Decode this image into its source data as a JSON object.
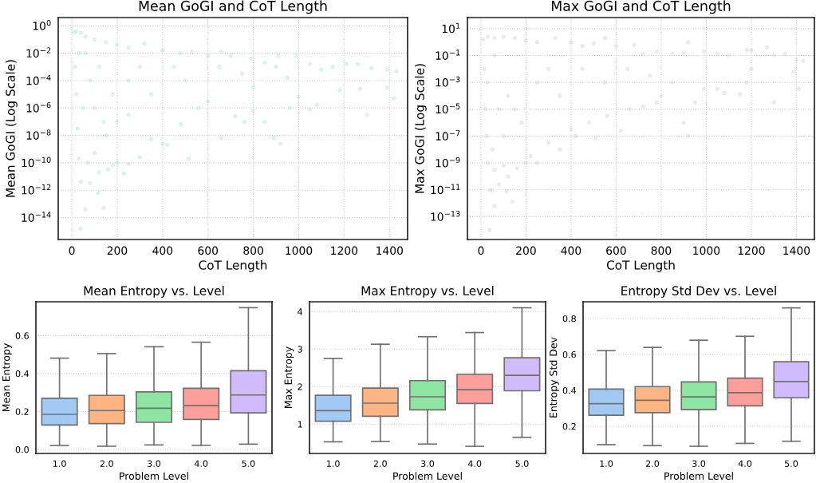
{
  "chart_data": [
    {
      "type": "scatter",
      "title": "Mean GoGI and CoT Length",
      "xlabel": "CoT Length",
      "ylabel": "Mean GoGI (Log Scale)",
      "log": "y",
      "grid": true,
      "marker": "circle",
      "xlim": [
        -60,
        1480
      ],
      "xticks": [
        0,
        200,
        400,
        600,
        800,
        1000,
        1200,
        1400
      ],
      "ylim": [
        2.5e-16,
        4
      ],
      "yticks": [
        {
          "value": 1,
          "label": "10$^{0}$"
        },
        {
          "value": 0.01,
          "label": "10$^{−2}$"
        },
        {
          "value": 0.0001,
          "label": "10$^{−4}$"
        },
        {
          "value": 1e-06,
          "label": "10$^{−6}$"
        },
        {
          "value": 1e-08,
          "label": "10$^{−8}$"
        },
        {
          "value": 1e-10,
          "label": "10$^{−10}$"
        },
        {
          "value": 1e-12,
          "label": "10$^{−12}$"
        },
        {
          "value": 1e-14,
          "label": "10$^{−14}$"
        }
      ],
      "series": [
        {
          "color": "#8dd3c7",
          "x": [
            10,
            20,
            40,
            60,
            100,
            150,
            200,
            250,
            320,
            400,
            480,
            530,
            600,
            660,
            700,
            790,
            850,
            910,
            990,
            1050,
            1100,
            1150,
            1210,
            1260,
            1320,
            1390,
            1430,
            1420,
            1390,
            1300,
            1270,
            1180,
            1080,
            1050,
            1000,
            960,
            920,
            890,
            850,
            800,
            760,
            720,
            660,
            600,
            560,
            515,
            480,
            420,
            400,
            350,
            300,
            250,
            230,
            200,
            180,
            160,
            150,
            140,
            120,
            115,
            100,
            80,
            70,
            60,
            40,
            38,
            30,
            25,
            20,
            15,
            50,
            80,
            120,
            180,
            250,
            300,
            350,
            450,
            500,
            650,
            750,
            800,
            900,
            950,
            30,
            60,
            100,
            140,
            200,
            250
          ],
          "values": [
            0.32,
            0.4,
            0.32,
            0.16,
            0.1,
            0.063,
            0.04,
            0.025,
            0.05,
            0.016,
            0.01,
            0.013,
            0.0063,
            0.013,
            0.0063,
            0.004,
            0.002,
            0.0063,
            0.0063,
            0.0016,
            0.00063,
            0.001,
            0.0016,
            0.0016,
            0.00079,
            0.00063,
            0.0005,
            5e-06,
            3.2e-05,
            3.2e-07,
            2.5e-05,
            2e-05,
            1.6e-06,
            7.9e-07,
            6.3e-06,
            1e-06,
            2.5e-09,
            6.3e-09,
            1e-07,
            6.3e-07,
            1e-07,
            2.5e-07,
            6.3e-09,
            3.2e-06,
            1e-06,
            2e-10,
            6.3e-08,
            2e-09,
            2.5e-09,
            5e-09,
            2.5e-10,
            7.9e-11,
            1.6e-11,
            1e-10,
            6.3e-11,
            3.2e-11,
            1e-08,
            5e-14,
            2e-11,
            6.3e-13,
            5e-10,
            3.2e-12,
            1e-10,
            4e-14,
            4e-12,
            1.6e-15,
            2e-10,
            3.2e-08,
            1e-05,
            0.001,
            1e-06,
            0.0001,
            0.001,
            1e-05,
            0.0001,
            0.001,
            1e-05,
            0.001,
            0.0001,
            0.001,
            0.00032,
            3.2e-05,
            0.001,
            0.00016,
            0.01,
            0.01,
            1e-06,
            1e-07,
            1e-07,
            3.2e-07
          ]
        }
      ]
    },
    {
      "type": "scatter",
      "title": "Max GoGI and CoT Length",
      "xlabel": "CoT Length",
      "ylabel": "Max GoGI (Log Scale)",
      "log": "y",
      "grid": true,
      "marker": "circle",
      "xlim": [
        -60,
        1480
      ],
      "xticks": [
        0,
        200,
        400,
        600,
        800,
        1000,
        1200,
        1400
      ],
      "ylim": [
        2e-15,
        67
      ],
      "yticks": [
        {
          "value": 10,
          "label": "10$^{1}$"
        },
        {
          "value": 0.1,
          "label": "10$^{−1}$"
        },
        {
          "value": 0.001,
          "label": "10$^{−3}$"
        },
        {
          "value": 1e-05,
          "label": "10$^{−5}$"
        },
        {
          "value": 1e-07,
          "label": "10$^{−7}$"
        },
        {
          "value": 1e-09,
          "label": "10$^{−9}$"
        },
        {
          "value": 1e-11,
          "label": "10$^{−11}$"
        },
        {
          "value": 1e-13,
          "label": "10$^{−13}$"
        }
      ],
      "series": [
        {
          "color": "#bebada",
          "x": [
            10,
            30,
            60,
            100,
            150,
            200,
            250,
            330,
            400,
            450,
            500,
            550,
            600,
            680,
            720,
            780,
            850,
            900,
            920,
            990,
            1050,
            1100,
            1180,
            1200,
            1270,
            1300,
            1350,
            1400,
            1430,
            1390,
            1410,
            1300,
            1200,
            1180,
            1150,
            1080,
            1050,
            990,
            950,
            920,
            900,
            850,
            800,
            780,
            720,
            660,
            620,
            560,
            510,
            480,
            420,
            400,
            350,
            300,
            250,
            220,
            200,
            160,
            120,
            115,
            100,
            80,
            60,
            60,
            50,
            40,
            38,
            30,
            25,
            20,
            15,
            140,
            50,
            80,
            120,
            180,
            250,
            300,
            350,
            450,
            550,
            650,
            750,
            30,
            60,
            100,
            150
          ],
          "values": [
            1.6,
            2.5,
            2,
            2.5,
            2,
            1.3,
            1,
            2,
            1,
            0.5,
            0.79,
            2,
            0.5,
            0.63,
            0.13,
            0.2,
            0.13,
            0.16,
            1,
            0.2,
            0.13,
            0.1,
            0.25,
            0.25,
            0.4,
            0.1,
            0.13,
            0.05,
            0.04,
            0.0063,
            0.00032,
            3.2e-05,
            0.01,
            0.001,
            0.00013,
            0.00016,
            0.00032,
            0.00032,
            3.2e-05,
            1e-07,
            1e-06,
            0.001,
            0.0001,
            3.2e-05,
            1.6e-05,
            1e-05,
            2.5e-07,
            3.2e-06,
            6.3e-08,
            1e-06,
            1e-07,
            3.2e-07,
            1e-08,
            3.2e-08,
            1e-09,
            3.2e-09,
            1e-09,
            4e-10,
            1e-10,
            7.9e-12,
            6.3e-10,
            2.5e-11,
            3.2e-10,
            6.3e-13,
            1e-11,
            1e-11,
            1e-14,
            1e-09,
            1e-07,
            1e-05,
            0.01,
            1.3e-12,
            1e-08,
            1e-05,
            0.0001,
            1e-06,
            0.001,
            0.01,
            0.0001,
            0.01,
            0.001,
            0.01,
            0.0032,
            0.001,
            0.1,
            1e-07,
            1e-05
          ]
        }
      ]
    },
    {
      "type": "box",
      "title": "Mean Entropy vs. Level",
      "xlabel": "Problem Level",
      "ylabel": "Mean Entropy",
      "grid": "y",
      "categories": [
        "1.0",
        "2.0",
        "3.0",
        "4.0",
        "5.0"
      ],
      "colors": [
        "#a1c9f4",
        "#ffb482",
        "#8de5a1",
        "#ff9f9b",
        "#d0bbff"
      ],
      "ylim": [
        -0.021,
        0.778
      ],
      "yticks": [
        {
          "value": 0,
          "label": "0.0"
        },
        0.2,
        0.4,
        0.6
      ],
      "boxes": [
        {
          "low": 0.021,
          "q1": 0.129,
          "median": 0.185,
          "q3": 0.27,
          "high": 0.481
        },
        {
          "low": 0.017,
          "q1": 0.136,
          "median": 0.205,
          "q3": 0.285,
          "high": 0.505
        },
        {
          "low": 0.024,
          "q1": 0.143,
          "median": 0.217,
          "q3": 0.303,
          "high": 0.541
        },
        {
          "low": 0.022,
          "q1": 0.158,
          "median": 0.231,
          "q3": 0.322,
          "high": 0.565
        },
        {
          "low": 0.028,
          "q1": 0.193,
          "median": 0.287,
          "q3": 0.415,
          "high": 0.747
        }
      ]
    },
    {
      "type": "box",
      "title": "Max Entropy vs. Level",
      "xlabel": "Problem Level",
      "ylabel": "Max Entropy",
      "grid": "y",
      "categories": [
        "1.0",
        "2.0",
        "3.0",
        "4.0",
        "5.0"
      ],
      "colors": [
        "#a1c9f4",
        "#ffb482",
        "#8de5a1",
        "#ff9f9b",
        "#d0bbff"
      ],
      "ylim": [
        0.22,
        4.26
      ],
      "yticks": [
        1,
        2,
        3,
        4
      ],
      "boxes": [
        {
          "low": 0.53,
          "q1": 1.08,
          "median": 1.36,
          "q3": 1.77,
          "high": 2.75
        },
        {
          "low": 0.54,
          "q1": 1.21,
          "median": 1.56,
          "q3": 1.96,
          "high": 3.13
        },
        {
          "low": 0.47,
          "q1": 1.38,
          "median": 1.73,
          "q3": 2.16,
          "high": 3.33
        },
        {
          "low": 0.41,
          "q1": 1.55,
          "median": 1.92,
          "q3": 2.33,
          "high": 3.44
        },
        {
          "low": 0.65,
          "q1": 1.89,
          "median": 2.3,
          "q3": 2.77,
          "high": 4.1
        }
      ]
    },
    {
      "type": "box",
      "title": "Entropy Std Dev vs. Level",
      "xlabel": "Problem Level",
      "ylabel": "Entropy Std Dev",
      "grid": "y",
      "categories": [
        "1.0",
        "2.0",
        "3.0",
        "4.0",
        "5.0"
      ],
      "colors": [
        "#a1c9f4",
        "#ffb482",
        "#8de5a1",
        "#ff9f9b",
        "#d0bbff"
      ],
      "ylim": [
        0.049,
        0.893
      ],
      "yticks": [
        0.2,
        0.4,
        0.6,
        0.8
      ],
      "boxes": [
        {
          "low": 0.098,
          "q1": 0.262,
          "median": 0.326,
          "q3": 0.407,
          "high": 0.621
        },
        {
          "low": 0.093,
          "q1": 0.276,
          "median": 0.345,
          "q3": 0.421,
          "high": 0.639
        },
        {
          "low": 0.089,
          "q1": 0.293,
          "median": 0.364,
          "q3": 0.447,
          "high": 0.679
        },
        {
          "low": 0.105,
          "q1": 0.314,
          "median": 0.387,
          "q3": 0.468,
          "high": 0.701
        },
        {
          "low": 0.117,
          "q1": 0.359,
          "median": 0.449,
          "q3": 0.559,
          "high": 0.859
        }
      ]
    }
  ]
}
